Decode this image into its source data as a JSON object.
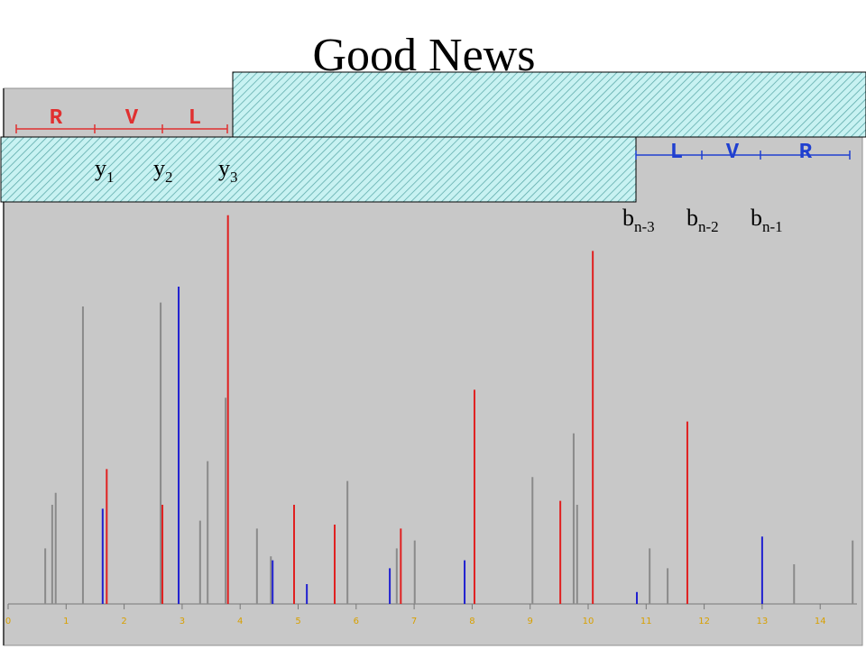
{
  "chart_data": {
    "type": "spectrum",
    "title": "Good News",
    "xlim": [
      0,
      14.7
    ],
    "ylim": [
      0,
      100
    ],
    "xticks": [
      0,
      1,
      2,
      3,
      4,
      5,
      6,
      7,
      8,
      9,
      10,
      11,
      12,
      13,
      14
    ],
    "top_sequence": [
      "R",
      "V",
      "L"
    ],
    "bottom_sequence": [
      "L",
      "V",
      "R"
    ],
    "y_ions": [
      {
        "base": "y",
        "sub": "1"
      },
      {
        "base": "y",
        "sub": "2"
      },
      {
        "base": "y",
        "sub": "3"
      }
    ],
    "b_ions": [
      {
        "base": "b",
        "sub": "n-3"
      },
      {
        "base": "b",
        "sub": "n-2"
      },
      {
        "base": "b",
        "sub": "n-1"
      }
    ],
    "top_sequence_color": "#e03030",
    "bottom_sequence_color": "#2040d0",
    "series": [
      {
        "color": "#8a8a8a",
        "x": [
          0.64,
          0.76,
          0.82,
          1.29,
          2.63,
          3.31,
          3.44,
          3.75,
          4.29,
          4.53,
          5.85,
          6.7,
          7.01,
          9.04,
          9.75,
          9.81,
          11.06,
          11.37,
          13.55,
          14.56
        ],
        "values": [
          14,
          25,
          28,
          75,
          76,
          21,
          36,
          52,
          19,
          12,
          31,
          14,
          16,
          32,
          43,
          25,
          14,
          9,
          10,
          16
        ]
      },
      {
        "color": "#e02020",
        "x": [
          1.7,
          2.66,
          3.79,
          4.93,
          5.63,
          6.77,
          8.04,
          9.52,
          10.08,
          11.71
        ],
        "values": [
          34,
          25,
          98,
          25,
          20,
          19,
          54,
          26,
          89,
          46
        ]
      },
      {
        "color": "#2020d0",
        "x": [
          1.63,
          2.94,
          4.56,
          5.15,
          6.58,
          7.87,
          10.84,
          13.0
        ],
        "values": [
          24,
          80,
          11,
          5,
          9,
          11,
          3,
          17
        ]
      }
    ]
  }
}
